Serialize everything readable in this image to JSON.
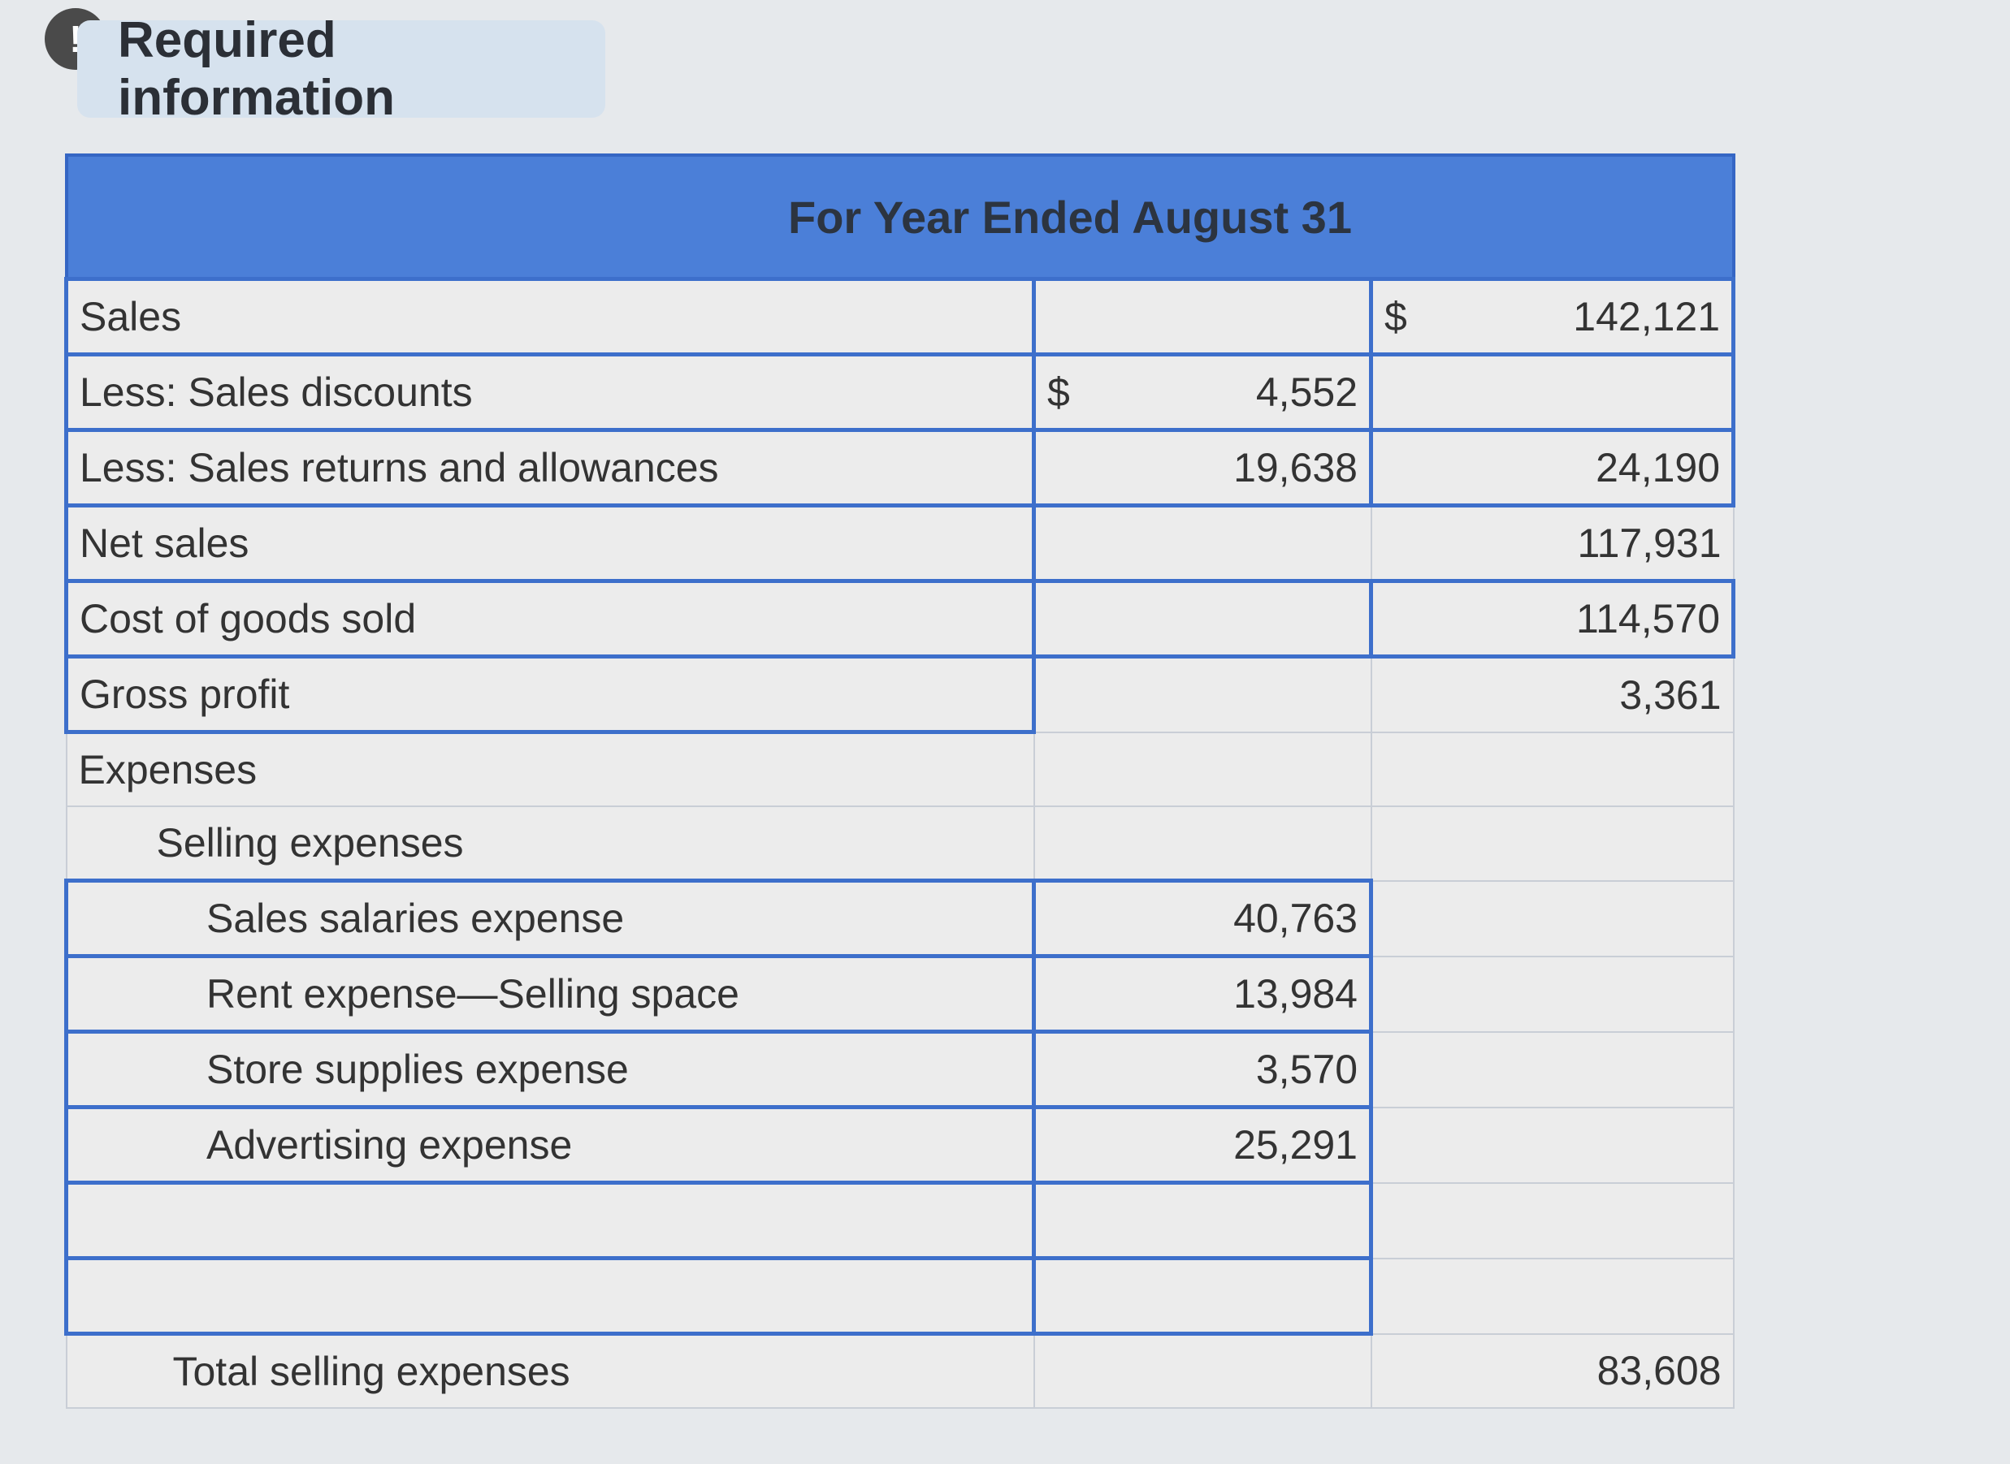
{
  "header": {
    "badge": "!",
    "title": "Required information"
  },
  "table": {
    "caption": "For Year Ended August 31",
    "rows": [
      {
        "label": "Sales",
        "col2_symbol": "$",
        "col2": "142,121"
      },
      {
        "label": "Less: Sales discounts",
        "col1_symbol": "$",
        "col1": "4,552"
      },
      {
        "label": "Less: Sales returns and allowances",
        "col1": "19,638",
        "col2": "24,190"
      },
      {
        "label": "Net sales",
        "col2": "117,931"
      },
      {
        "label": "Cost of goods sold",
        "col2": "114,570"
      },
      {
        "label": "Gross profit",
        "col2": "3,361"
      },
      {
        "label": "Expenses"
      },
      {
        "label": "Selling expenses"
      },
      {
        "label": "Sales salaries expense",
        "col1": "40,763"
      },
      {
        "label": "Rent expense—Selling space",
        "col1": "13,984"
      },
      {
        "label": "Store supplies expense",
        "col1": "3,570"
      },
      {
        "label": "Advertising expense",
        "col1": "25,291"
      },
      {
        "label": "Total selling expenses",
        "col2": "83,608"
      }
    ]
  }
}
